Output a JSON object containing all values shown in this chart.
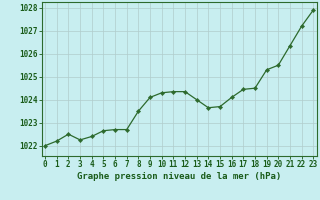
{
  "x": [
    0,
    1,
    2,
    3,
    4,
    5,
    6,
    7,
    8,
    9,
    10,
    11,
    12,
    13,
    14,
    15,
    16,
    17,
    18,
    19,
    20,
    21,
    22,
    23
  ],
  "y": [
    1022.0,
    1022.2,
    1022.5,
    1022.25,
    1022.4,
    1022.65,
    1022.7,
    1022.7,
    1023.5,
    1024.1,
    1024.3,
    1024.35,
    1024.35,
    1024.0,
    1023.65,
    1023.7,
    1024.1,
    1024.45,
    1024.5,
    1025.3,
    1025.5,
    1026.35,
    1027.2,
    1027.9
  ],
  "line_color": "#2d6a2d",
  "marker": "D",
  "marker_size": 2.2,
  "bg_color": "#c8eef0",
  "grid_color": "#b0cccc",
  "ylabel_ticks": [
    1022,
    1023,
    1024,
    1025,
    1026,
    1027,
    1028
  ],
  "xticks": [
    0,
    1,
    2,
    3,
    4,
    5,
    6,
    7,
    8,
    9,
    10,
    11,
    12,
    13,
    14,
    15,
    16,
    17,
    18,
    19,
    20,
    21,
    22,
    23
  ],
  "ylim": [
    1021.55,
    1028.25
  ],
  "xlim": [
    -0.3,
    23.3
  ],
  "xlabel": "Graphe pression niveau de la mer (hPa)",
  "xlabel_color": "#1a5c1a",
  "tick_color": "#1a5c1a",
  "axis_label_fontsize": 6.5,
  "tick_fontsize": 5.5
}
